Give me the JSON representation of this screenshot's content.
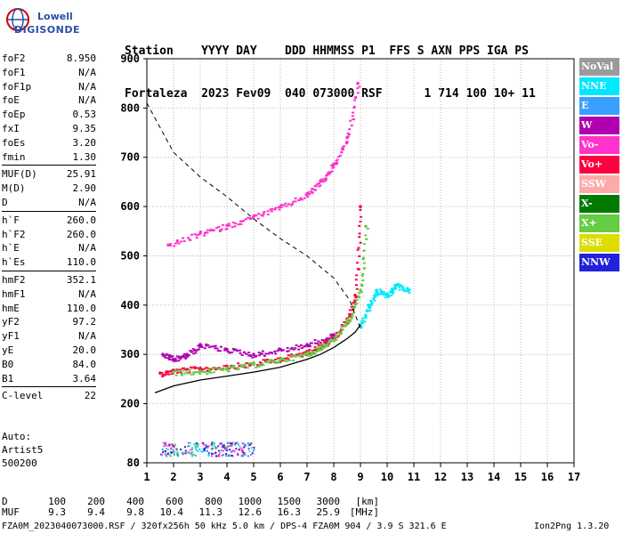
{
  "logo": {
    "line1": "Lowell",
    "line2": "DIGISONDE"
  },
  "header": {
    "row1": "Station    YYYY DAY    DDD HHMMSS P1  FFS S AXN PPS IGA PS",
    "row2": "Fortaleza  2023 Fev09  040 073000 RSF      1 714 100 10+ 11"
  },
  "params": {
    "group1": [
      {
        "label": "foF2",
        "value": "8.950"
      },
      {
        "label": "foF1",
        "value": "N/A"
      },
      {
        "label": "foF1p",
        "value": "N/A"
      },
      {
        "label": "foE",
        "value": "N/A"
      },
      {
        "label": "foEp",
        "value": "0.53"
      },
      {
        "label": "fxI",
        "value": "9.35"
      },
      {
        "label": "foEs",
        "value": "3.20"
      },
      {
        "label": "fmin",
        "value": "1.30"
      }
    ],
    "group2": [
      {
        "label": "MUF(D)",
        "value": "25.91"
      },
      {
        "label": "M(D)",
        "value": "2.90"
      },
      {
        "label": "D",
        "value": "N/A"
      }
    ],
    "group3": [
      {
        "label": "h`F",
        "value": "260.0"
      },
      {
        "label": "h`F2",
        "value": "260.0"
      },
      {
        "label": "h`E",
        "value": "N/A"
      },
      {
        "label": "h`Es",
        "value": "110.0"
      }
    ],
    "group4": [
      {
        "label": "hmF2",
        "value": "352.1"
      },
      {
        "label": "hmF1",
        "value": "N/A"
      },
      {
        "label": "hmE",
        "value": "110.0"
      },
      {
        "label": "yF2",
        "value": "97.2"
      },
      {
        "label": "yF1",
        "value": "N/A"
      },
      {
        "label": "yE",
        "value": "20.0"
      },
      {
        "label": "B0",
        "value": "84.0"
      },
      {
        "label": "B1",
        "value": "3.64"
      }
    ],
    "group5": [
      {
        "label": "C-level",
        "value": "22"
      }
    ]
  },
  "auto": {
    "line1": "Auto:",
    "line2": "Artist5",
    "line3": "500200"
  },
  "legend": [
    {
      "label": "NoVal",
      "color": "#9a9a9a"
    },
    {
      "label": "NNE",
      "color": "#00e8ff"
    },
    {
      "label": "E",
      "color": "#3aa0ff"
    },
    {
      "label": "W",
      "color": "#b000b0"
    },
    {
      "label": "Vo-",
      "color": "#ff33cc"
    },
    {
      "label": "Vo+",
      "color": "#ff0040"
    },
    {
      "label": "SSW",
      "color": "#ffaaaa"
    },
    {
      "label": "X-",
      "color": "#007a00"
    },
    {
      "label": "X+",
      "color": "#66cc44"
    },
    {
      "label": "SSE",
      "color": "#dddd00"
    },
    {
      "label": "NNW",
      "color": "#2222dd"
    }
  ],
  "chart_data": {
    "type": "scatter",
    "xlabel": "",
    "ylabel": "",
    "xlim": [
      1,
      17
    ],
    "ylim": [
      80,
      900
    ],
    "x_ticks": [
      "1",
      "2",
      "3",
      "4",
      "5",
      "6",
      "7",
      "8",
      "9",
      "10",
      "11",
      "12",
      "13",
      "14",
      "15",
      "16",
      "17"
    ],
    "y_ticks": [
      "80",
      "200",
      "300",
      "400",
      "500",
      "600",
      "700",
      "800",
      "900"
    ],
    "grid": true,
    "series": [
      {
        "name": "Vo+",
        "color": "#ff0040",
        "x": [
          1.5,
          2.0,
          3.0,
          4.0,
          5.0,
          6.0,
          7.0,
          7.5,
          8.0,
          8.5,
          8.8,
          9.0
        ],
        "y": [
          262,
          268,
          272,
          276,
          282,
          292,
          306,
          318,
          336,
          372,
          420,
          600
        ]
      },
      {
        "name": "X+",
        "color": "#66cc44",
        "x": [
          2.0,
          3.0,
          4.0,
          5.0,
          6.0,
          7.0,
          7.5,
          8.0,
          8.5,
          9.0,
          9.2
        ],
        "y": [
          264,
          266,
          272,
          280,
          290,
          302,
          316,
          334,
          368,
          430,
          560
        ]
      },
      {
        "name": "W",
        "color": "#b000b0",
        "x": [
          1.6,
          2.0,
          2.5,
          3.0,
          4.0,
          5.0,
          6.0,
          7.0,
          8.0
        ],
        "y": [
          300,
          290,
          300,
          320,
          310,
          300,
          310,
          320,
          340
        ]
      },
      {
        "name": "NNE",
        "color": "#00e8ff",
        "x": [
          9.0,
          9.3,
          9.6,
          10.0,
          10.3,
          10.8
        ],
        "y": [
          360,
          400,
          430,
          420,
          440,
          430
        ]
      },
      {
        "name": "Vo-",
        "color": "#ff33cc",
        "x": [
          1.8,
          3.0,
          4.0,
          5.0,
          6.0,
          7.0,
          7.5,
          8.0,
          8.5,
          8.9
        ],
        "y": [
          522,
          546,
          562,
          580,
          600,
          626,
          652,
          686,
          740,
          850
        ]
      }
    ],
    "curves": {
      "true_height_profile": {
        "x": [
          1.3,
          2,
          3,
          4,
          5,
          6,
          7,
          7.5,
          8,
          8.5,
          8.8,
          9.0
        ],
        "y": [
          222,
          236,
          248,
          256,
          264,
          274,
          290,
          300,
          314,
          332,
          345,
          360
        ]
      },
      "muf_curve": {
        "x": [
          1,
          2,
          3,
          4,
          5,
          6,
          7,
          8,
          8.6,
          9.0
        ],
        "y": [
          810,
          710,
          660,
          620,
          575,
          535,
          500,
          455,
          410,
          352
        ]
      }
    },
    "d_scale": {
      "d_label": "D",
      "muf_label": "MUF",
      "d_values": [
        "100",
        "200",
        "400",
        "600",
        "800",
        "1000",
        "1500",
        "3000",
        "[km]"
      ],
      "muf_values": [
        "9.3",
        "9.4",
        "9.8",
        "10.4",
        "11.3",
        "12.6",
        "16.3",
        "25.9",
        "[MHz]"
      ]
    }
  },
  "footer": {
    "text": "FZA0M_2023040073000.RSF / 320fx256h 50 kHz 5.0 km / DPS-4 FZA0M 904 / 3.9 S 321.6 E",
    "version": "Ion2Png 1.3.20"
  }
}
